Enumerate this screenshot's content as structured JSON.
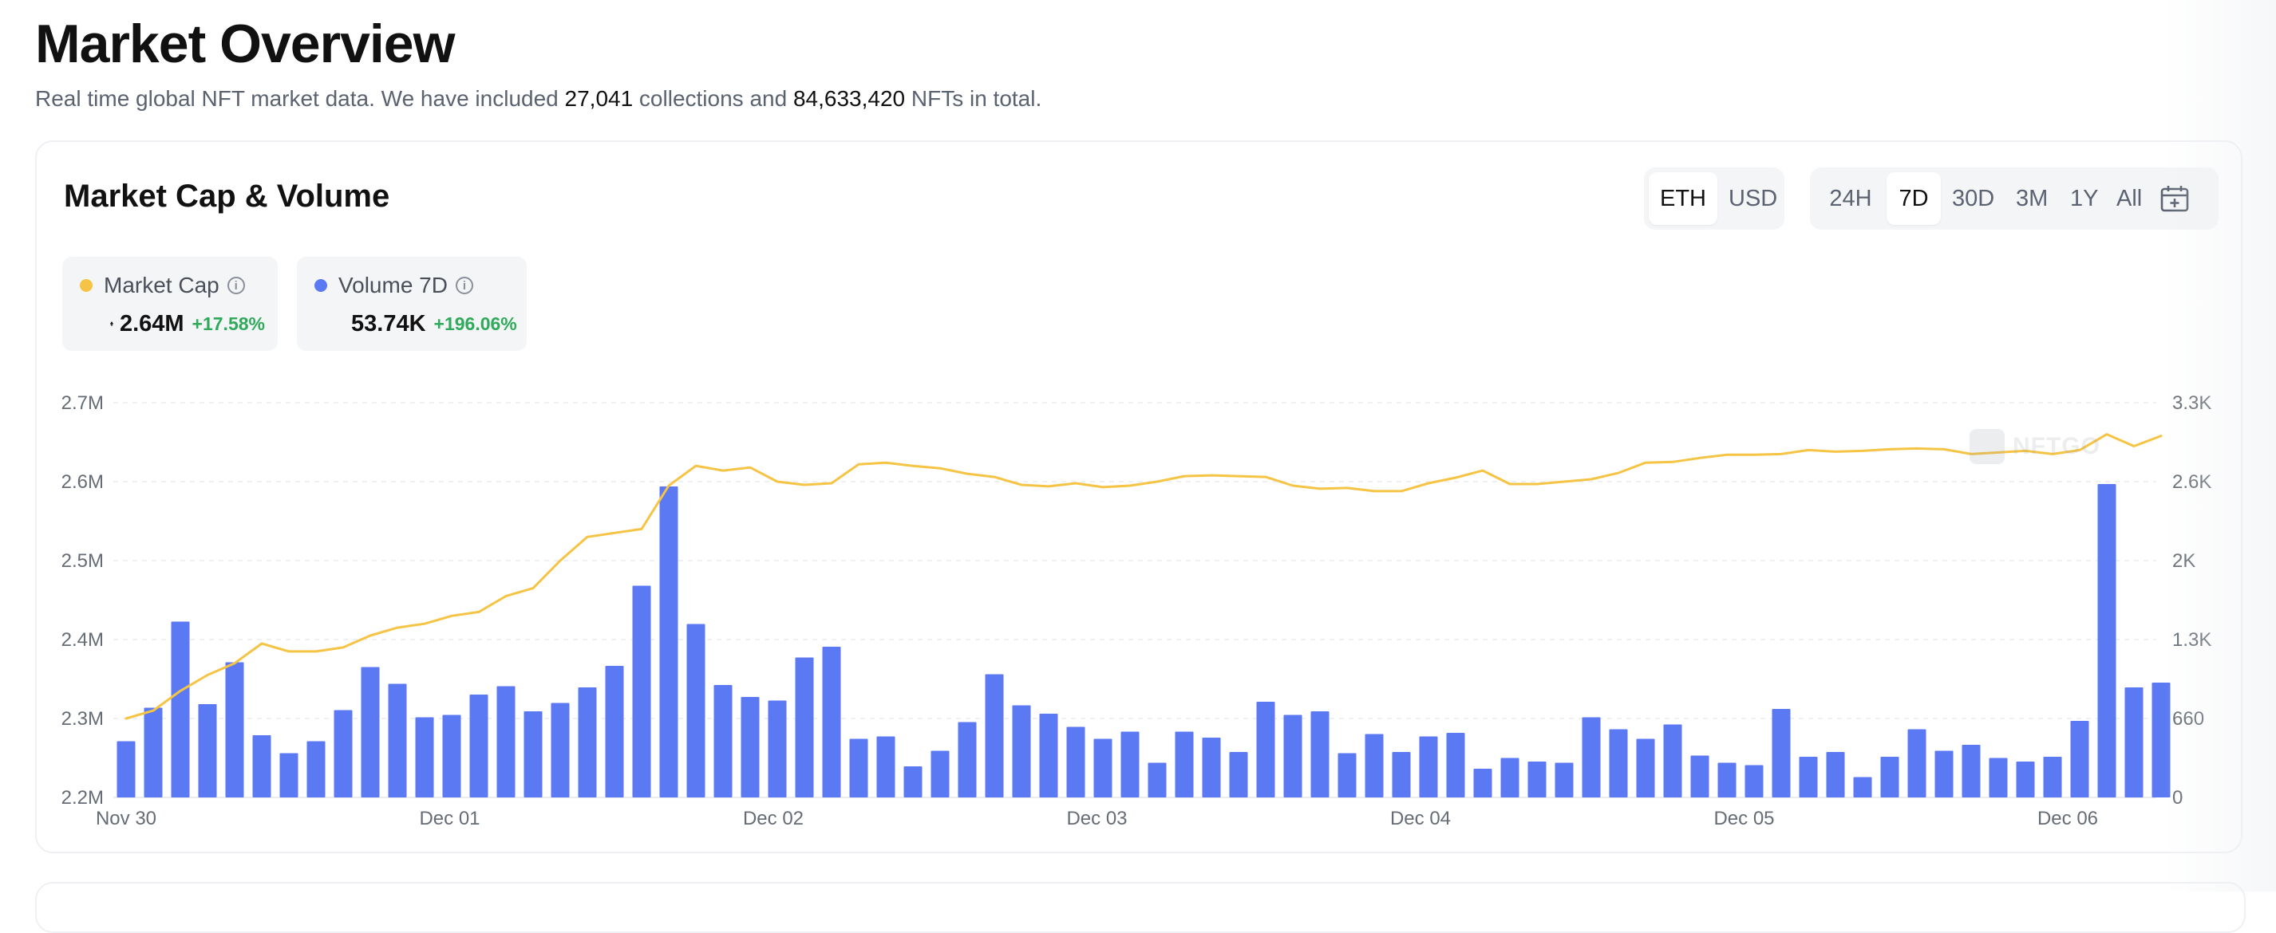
{
  "header": {
    "title": "Market Overview",
    "subtitle_prefix": "Real time global NFT market data. We have included ",
    "collections_count": "27,041",
    "subtitle_middle": " collections and ",
    "nfts_count": "84,633,420",
    "subtitle_suffix": " NFTs in total."
  },
  "card": {
    "title": "Market Cap & Volume",
    "currency_tabs": [
      {
        "label": "ETH",
        "active": true
      },
      {
        "label": "USD",
        "active": false
      }
    ],
    "range_tabs": [
      {
        "label": "24H",
        "active": false
      },
      {
        "label": "7D",
        "active": true
      },
      {
        "label": "30D",
        "active": false
      },
      {
        "label": "3M",
        "active": false
      },
      {
        "label": "1Y",
        "active": false
      },
      {
        "label": "All",
        "active": false
      }
    ],
    "calendar_icon": "calendar-plus-icon",
    "legend": [
      {
        "name": "Market Cap",
        "value": "2.64M",
        "change": "+17.58%",
        "color": "#f6c445",
        "icon": "eth-icon"
      },
      {
        "name": "Volume 7D",
        "value": "53.74K",
        "change": "+196.06%",
        "color": "#5b79f2",
        "icon": "eth-icon"
      }
    ],
    "watermark": "NFTGO"
  },
  "chart_data": {
    "type": "bar+line",
    "x_labels": [
      "Nov 30",
      "Dec 01",
      "Dec 02",
      "Dec 03",
      "Dec 04",
      "Dec 05",
      "Dec 06"
    ],
    "y_left_ticks": [
      "2.2M",
      "2.3M",
      "2.4M",
      "2.5M",
      "2.6M",
      "2.7M"
    ],
    "y_right_ticks": [
      "0",
      "660",
      "1.3K",
      "2K",
      "2.6K",
      "3.3K"
    ],
    "ylim_left": [
      2200000,
      2700000
    ],
    "ylim_right": [
      0,
      3300
    ],
    "grid": true,
    "series": [
      {
        "name": "Volume 7D",
        "type": "bar",
        "axis": "right",
        "color": "#5b79f2",
        "values": [
          470,
          750,
          1470,
          780,
          1130,
          520,
          370,
          470,
          730,
          1090,
          950,
          670,
          690,
          860,
          930,
          720,
          790,
          920,
          1100,
          1770,
          2600,
          1450,
          940,
          840,
          810,
          1170,
          1260,
          490,
          510,
          260,
          390,
          630,
          1030,
          770,
          700,
          590,
          490,
          550,
          290,
          550,
          500,
          380,
          800,
          690,
          720,
          370,
          530,
          380,
          510,
          540,
          240,
          330,
          300,
          290,
          670,
          570,
          490,
          610,
          350,
          290,
          270,
          740,
          340,
          380,
          170,
          340,
          570,
          390,
          440,
          330,
          300,
          340,
          640,
          2620,
          920,
          960
        ]
      },
      {
        "name": "Market Cap",
        "type": "line",
        "axis": "left",
        "color": "#f6c445",
        "values": [
          2.3,
          2.31,
          2.335,
          2.355,
          2.37,
          2.395,
          2.385,
          2.385,
          2.39,
          2.405,
          2.415,
          2.42,
          2.43,
          2.435,
          2.455,
          2.465,
          2.5,
          2.53,
          2.535,
          2.54,
          2.595,
          2.62,
          2.614,
          2.618,
          2.6,
          2.596,
          2.598,
          2.622,
          2.624,
          2.62,
          2.617,
          2.61,
          2.606,
          2.596,
          2.594,
          2.598,
          2.593,
          2.595,
          2.6,
          2.607,
          2.608,
          2.607,
          2.606,
          2.595,
          2.591,
          2.592,
          2.588,
          2.588,
          2.598,
          2.605,
          2.614,
          2.597,
          2.597,
          2.6,
          2.603,
          2.611,
          2.624,
          2.625,
          2.63,
          2.634,
          2.634,
          2.635,
          2.64,
          2.638,
          2.639,
          2.641,
          2.642,
          2.641,
          2.635,
          2.637,
          2.639,
          2.635,
          2.64,
          2.66,
          2.645,
          2.658
        ]
      }
    ]
  }
}
